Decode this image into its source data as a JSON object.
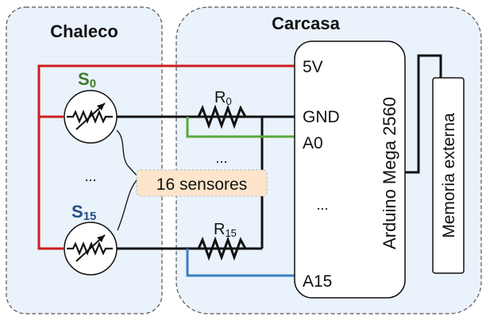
{
  "groups": {
    "vest_title": "Chaleco",
    "housing_title": "Carcasa"
  },
  "sensors": {
    "s0_prefix": "S",
    "s0_sub": "0",
    "s15_prefix": "S",
    "s15_sub": "15",
    "ellipsis": "...",
    "count_label": "16 sensores"
  },
  "resistors": {
    "r0_prefix": "R",
    "r0_sub": "0",
    "r15_prefix": "R",
    "r15_sub": "15",
    "ellipsis": "..."
  },
  "arduino": {
    "name": "Arduino Mega 2560",
    "pin_5v": "5V",
    "pin_gnd": "GND",
    "pin_a0": "A0",
    "pin_ellipsis": "...",
    "pin_a15": "A15"
  },
  "memory": {
    "name": "Memoria externa"
  },
  "colors": {
    "power_wire": "#cc1f1f",
    "gnd_wire": "#111111",
    "a0_wire": "#5aa83a",
    "a15_wire": "#3a7fc0",
    "group_fill": "#eaf2fb",
    "label_fill": "#fde5cc",
    "s0_color": "#3f7a2a",
    "s15_color": "#234f86"
  }
}
